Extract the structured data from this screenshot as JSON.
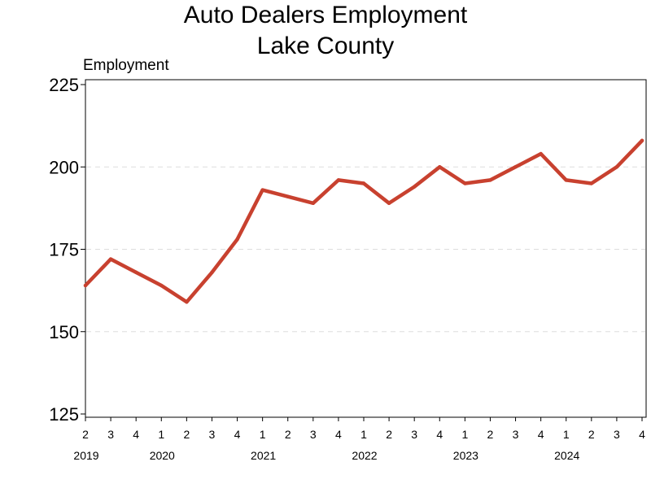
{
  "chart_data": {
    "type": "line",
    "title": "Auto Dealers Employment",
    "subtitle": "Lake County",
    "ylabel": "Employment",
    "xlabel": "",
    "ylim": [
      125,
      225
    ],
    "yticks": [
      "125",
      "150",
      "175",
      "200",
      "225"
    ],
    "grid": "horizontal dashed at 150, 175, 200",
    "legend": "none",
    "line_color": "#c8412f",
    "x": [
      "2019 Q2",
      "2019 Q3",
      "2019 Q4",
      "2020 Q1",
      "2020 Q2",
      "2020 Q3",
      "2020 Q4",
      "2021 Q1",
      "2021 Q2",
      "2021 Q3",
      "2021 Q4",
      "2022 Q1",
      "2022 Q2",
      "2022 Q3",
      "2022 Q4",
      "2023 Q1",
      "2023 Q2",
      "2023 Q3",
      "2023 Q4",
      "2024 Q1",
      "2024 Q2",
      "2024 Q3",
      "2024 Q4"
    ],
    "quarter_labels": [
      "2",
      "3",
      "4",
      "1",
      "2",
      "3",
      "4",
      "1",
      "2",
      "3",
      "4",
      "1",
      "2",
      "3",
      "4",
      "1",
      "2",
      "3",
      "4",
      "1",
      "2",
      "3",
      "4"
    ],
    "year_labels": [
      "2019",
      "2020",
      "2021",
      "2022",
      "2023",
      "2024"
    ],
    "year_label_positions": [
      0,
      3,
      7,
      11,
      15,
      19
    ],
    "series": [
      {
        "values": [
          164,
          172,
          168,
          164,
          159,
          168,
          178,
          193,
          191,
          189,
          196,
          195,
          189,
          194,
          200,
          195,
          196,
          200,
          204,
          196,
          195,
          200,
          208
        ]
      }
    ]
  }
}
